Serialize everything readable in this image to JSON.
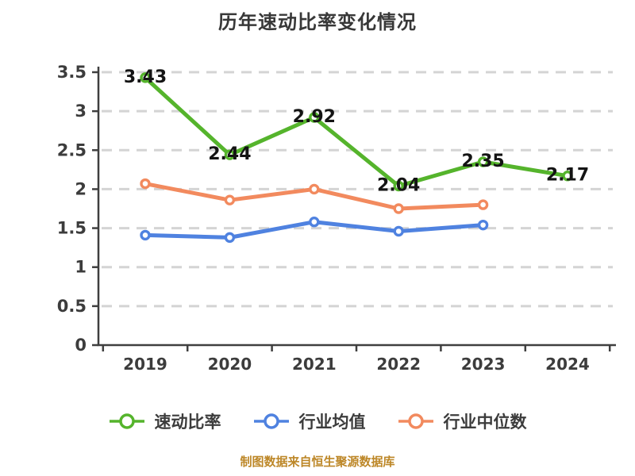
{
  "title": "历年速动比率变化情况",
  "caption": "制图数据来自恒生聚源数据库",
  "colors": {
    "series_green": "#55b42c",
    "series_blue": "#4f82e0",
    "series_orange": "#f28a5e",
    "grid": "#d4d4d4",
    "axis": "#3f3f3f",
    "tick_text": "#3c3c3c",
    "data_label": "#141414",
    "caption_text": "#bd8728",
    "marker_fill": "#ffffff"
  },
  "chart_data": {
    "type": "line",
    "title": "历年速动比率变化情况",
    "categories": [
      "2019",
      "2020",
      "2021",
      "2022",
      "2023",
      "2024"
    ],
    "series": [
      {
        "name": "速动比率",
        "color": "#55b42c",
        "values": [
          3.43,
          2.44,
          2.92,
          2.04,
          2.35,
          2.17
        ],
        "labels": [
          "3.43",
          "2.44",
          "2.92",
          "2.04",
          "2.35",
          "2.17"
        ],
        "labeled": true
      },
      {
        "name": "行业均值",
        "color": "#4f82e0",
        "values": [
          1.41,
          1.38,
          1.58,
          1.46,
          1.54,
          null
        ],
        "labeled": false
      },
      {
        "name": "行业中位数",
        "color": "#f28a5e",
        "values": [
          2.07,
          1.86,
          2.0,
          1.75,
          1.8,
          null
        ],
        "labeled": false
      }
    ],
    "xlabel": "",
    "ylabel": "",
    "ylim": [
      0,
      3.5
    ],
    "ytick_step": 0.5,
    "yticks": [
      "0",
      "0.5",
      "1",
      "1.5",
      "2",
      "2.5",
      "3",
      "3.5"
    ],
    "grid": "dashed-horizontal",
    "legend_position": "bottom",
    "marker_style": "white-filled-circle"
  }
}
